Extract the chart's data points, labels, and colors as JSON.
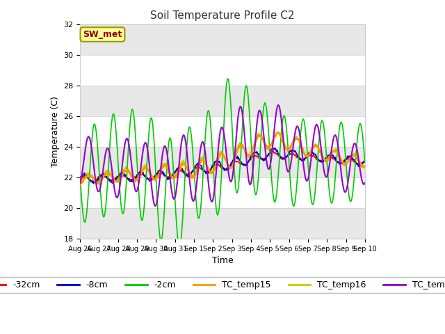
{
  "title": "Soil Temperature Profile C2",
  "xlabel": "Time",
  "ylabel": "Temperature (C)",
  "ylim": [
    18,
    32
  ],
  "yticks": [
    18,
    20,
    22,
    24,
    26,
    28,
    30,
    32
  ],
  "annotation": "SW_met",
  "fig_bg": "#ffffff",
  "plot_bg": "#ffffff",
  "series": {
    "-32cm": {
      "color": "#ff0000",
      "lw": 1.2,
      "zorder": 3
    },
    "-8cm": {
      "color": "#0000cc",
      "lw": 1.2,
      "zorder": 4
    },
    "-2cm": {
      "color": "#00cc00",
      "lw": 1.2,
      "zorder": 5
    },
    "TC_temp15": {
      "color": "#ff9900",
      "lw": 1.8,
      "zorder": 6
    },
    "TC_temp16": {
      "color": "#cccc00",
      "lw": 1.5,
      "zorder": 2
    },
    "TC_temp17": {
      "color": "#9900cc",
      "lw": 1.5,
      "zorder": 7
    }
  },
  "tick_labels": [
    "Aug 26",
    "Aug 27",
    "Aug 28",
    "Aug 29",
    "Aug 30",
    "Aug 31",
    "Sep 1",
    "Sep 2",
    "Sep 3",
    "Sep 4",
    "Sep 5",
    "Sep 6",
    "Sep 7",
    "Sep 8",
    "Sep 9",
    "Sep 10"
  ],
  "legend_fontsize": 9,
  "title_fontsize": 11,
  "tick_fontsize": 8,
  "label_fontsize": 9
}
